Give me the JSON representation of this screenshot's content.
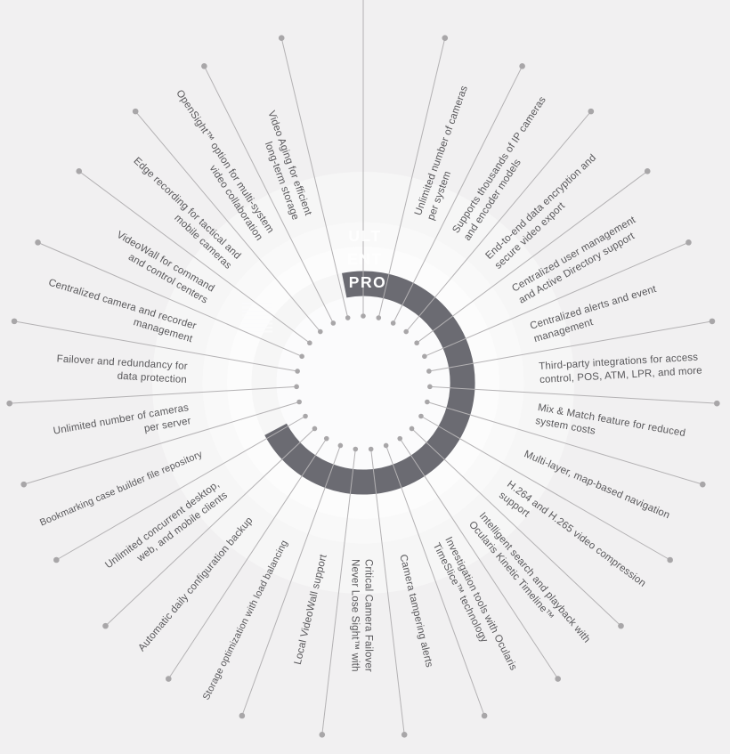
{
  "tiers": {
    "ult": "ULT",
    "ent": "ENT",
    "pro": "PRO"
  },
  "features": [
    {
      "lines": [
        "Video Aging for efficient",
        "long-term storage"
      ]
    },
    {
      "lines": [
        "Unlimited number of cameras",
        "per system"
      ]
    },
    {
      "lines": [
        "Supports thousands of IP cameras",
        "and encoder models"
      ]
    },
    {
      "lines": [
        "End-to-end data encryption and",
        "secure video export"
      ]
    },
    {
      "lines": [
        "Centralized user management",
        "and Active Directory support"
      ]
    },
    {
      "lines": [
        "Centralized alerts and event",
        "management"
      ]
    },
    {
      "lines": [
        "Third-party integrations for access",
        "control, POS, ATM, LPR, and more"
      ]
    },
    {
      "lines": [
        "Mix & Match feature for reduced",
        "system costs"
      ]
    },
    {
      "lines": [
        "Multi-layer, map-based navigation"
      ]
    },
    {
      "lines": [
        "H.264 and H.265 video compression",
        "support"
      ]
    },
    {
      "lines": [
        "Intelligent search and playback with",
        "Ocularis Kinetic Timeline™"
      ]
    },
    {
      "lines": [
        "Investigation tools with Ocularis",
        "TimeSlice™ technology"
      ]
    },
    {
      "lines": [
        "Camera tampering alerts"
      ]
    },
    {
      "lines": [
        "Never Lose Sight™ with",
        "Critical Camera Failover"
      ]
    },
    {
      "lines": [
        "Local VideoWall support"
      ]
    },
    {
      "lines": [
        "Storage optimization with load balancing"
      ]
    },
    {
      "lines": [
        "Automatic daily configuration backup"
      ]
    },
    {
      "lines": [
        "Unlimited concurrent desktop,",
        "web, and mobile clients"
      ]
    },
    {
      "lines": [
        "Bookmarking case builder file repository"
      ]
    },
    {
      "lines": [
        "Unlimited number of cameras",
        "per server"
      ]
    },
    {
      "lines": [
        "Failover and redundancy for",
        "data protection"
      ]
    },
    {
      "lines": [
        "Centralized camera and recorder",
        "management"
      ]
    },
    {
      "lines": [
        "VideoWall for command",
        "and control centers"
      ]
    },
    {
      "lines": [
        "Edge recording for tactical and",
        "mobile cameras"
      ]
    },
    {
      "lines": [
        "OpenSight™ option for multi-system",
        "video collaboration"
      ]
    }
  ],
  "colors": {
    "background": "#f1f0f1",
    "pro_arc": "#6b6b72",
    "spoke_line": "#b3b1b3",
    "spoke_dot": "#a8a6a8",
    "label_text": "#59585b",
    "tier_text": "#ffffff"
  }
}
